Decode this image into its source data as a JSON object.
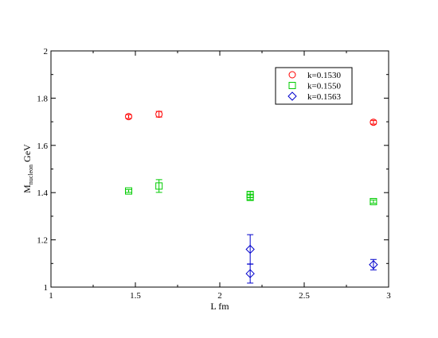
{
  "chart_data": {
    "type": "scatter",
    "xlabel": "L fm",
    "ylabel_main": "M",
    "ylabel_sub": "nucleon",
    "ylabel_unit": " GeV",
    "xlim": [
      1,
      3
    ],
    "ylim": [
      1,
      2
    ],
    "x_ticks": [
      1,
      1.5,
      2,
      2.5,
      3
    ],
    "x_tick_labels": [
      "1",
      "1.5",
      "2",
      "2.5",
      "3"
    ],
    "y_ticks": [
      1,
      1.2,
      1.4,
      1.6,
      1.8,
      2
    ],
    "y_tick_labels": [
      "1",
      "1.2",
      "1.4",
      "1.6",
      "1.8",
      "2"
    ],
    "grid": false,
    "legend_position": "top-right",
    "series": [
      {
        "name": "k=0.1530",
        "marker": "circle",
        "color": "#ff0000",
        "points": [
          {
            "x": 1.46,
            "y": 1.722,
            "err": 0.008
          },
          {
            "x": 1.64,
            "y": 1.732,
            "err": 0.012
          },
          {
            "x": 2.91,
            "y": 1.698,
            "err": 0.008
          }
        ]
      },
      {
        "name": "k=0.1550",
        "marker": "square",
        "color": "#00cc00",
        "points": [
          {
            "x": 1.46,
            "y": 1.407,
            "err": 0.006
          },
          {
            "x": 1.64,
            "y": 1.428,
            "err": 0.027
          },
          {
            "x": 2.18,
            "y": 1.392,
            "err": 0.012
          },
          {
            "x": 2.18,
            "y": 1.38,
            "err": 0.01
          },
          {
            "x": 2.91,
            "y": 1.362,
            "err": 0.007
          }
        ]
      },
      {
        "name": "k=0.1563",
        "marker": "diamond",
        "color": "#0000cc",
        "points": [
          {
            "x": 2.18,
            "y": 1.16,
            "err": 0.062
          },
          {
            "x": 2.18,
            "y": 1.057,
            "err": 0.04
          },
          {
            "x": 2.91,
            "y": 1.095,
            "err": 0.022
          }
        ]
      }
    ]
  }
}
